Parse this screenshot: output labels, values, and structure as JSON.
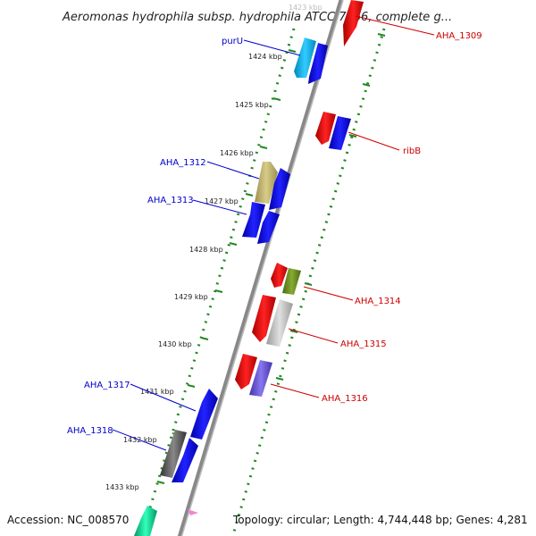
{
  "title": "Aeromonas hydrophila subsp. hydrophila ATCC 7966, complete g...",
  "footer": {
    "accession": "Accession: NC_008570",
    "summary": "Topology: circular; Length: 4,744,448 bp; Genes: 4,281"
  },
  "ticks": [
    {
      "label": "1423 kbp",
      "faded": true
    },
    {
      "label": "1424 kbp"
    },
    {
      "label": "1425 kbp"
    },
    {
      "label": "1426 kbp"
    },
    {
      "label": "1427 kbp"
    },
    {
      "label": "1428 kbp"
    },
    {
      "label": "1429 kbp"
    },
    {
      "label": "1430 kbp"
    },
    {
      "label": "1431 kbp"
    },
    {
      "label": "1432 kbp"
    },
    {
      "label": "1433 kbp"
    }
  ],
  "gene_labels": [
    {
      "name": "purU",
      "side": "left"
    },
    {
      "name": "AHA_1309",
      "side": "right"
    },
    {
      "name": "ribB",
      "side": "right"
    },
    {
      "name": "AHA_1312",
      "side": "left"
    },
    {
      "name": "AHA_1313",
      "side": "left"
    },
    {
      "name": "AHA_1314",
      "side": "right"
    },
    {
      "name": "AHA_1315",
      "side": "right"
    },
    {
      "name": "AHA_1316",
      "side": "right"
    },
    {
      "name": "AHA_1317",
      "side": "left"
    },
    {
      "name": "AHA_1318",
      "side": "left"
    }
  ],
  "colors": {
    "backbone": "#888888",
    "dots_outer": "#228822",
    "label_left": "#0000cc",
    "label_right": "#cc0000",
    "forward_gene": "#0000ee",
    "reverse_gene": "#ee0000"
  }
}
